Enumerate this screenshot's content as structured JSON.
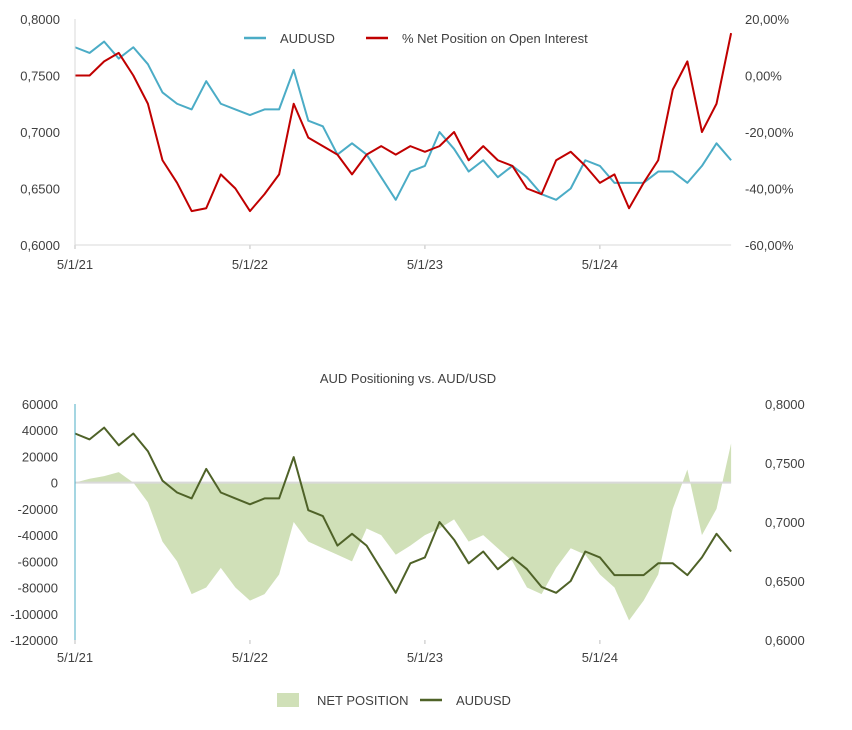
{
  "chart_data": [
    {
      "type": "line",
      "title": "",
      "legend_position": "top",
      "x_ticks": [
        "5/1/21",
        "5/1/22",
        "5/1/23",
        "5/1/24"
      ],
      "y_left": {
        "ticks": [
          "0,6000",
          "0,6500",
          "0,7000",
          "0,7500",
          "0,8000"
        ],
        "range": [
          0.6,
          0.8
        ]
      },
      "y_right": {
        "ticks": [
          "-60,00%",
          "-40,00%",
          "-20,00%",
          "0,00%",
          "20,00%"
        ],
        "range": [
          -60,
          20
        ]
      },
      "x": [
        "2021-05",
        "2021-06",
        "2021-07",
        "2021-08",
        "2021-09",
        "2021-10",
        "2021-11",
        "2021-12",
        "2022-01",
        "2022-02",
        "2022-03",
        "2022-04",
        "2022-05",
        "2022-06",
        "2022-07",
        "2022-08",
        "2022-09",
        "2022-10",
        "2022-11",
        "2022-12",
        "2023-01",
        "2023-02",
        "2023-03",
        "2023-04",
        "2023-05",
        "2023-06",
        "2023-07",
        "2023-08",
        "2023-09",
        "2023-10",
        "2023-11",
        "2023-12",
        "2024-01",
        "2024-02",
        "2024-03",
        "2024-04",
        "2024-05",
        "2024-06",
        "2024-07",
        "2024-08",
        "2024-09",
        "2024-10",
        "2024-11",
        "2024-12",
        "2025-01",
        "2025-02"
      ],
      "series": [
        {
          "name": "AUDUSD",
          "axis": "left",
          "color": "#4bacc6",
          "values": [
            0.775,
            0.77,
            0.78,
            0.765,
            0.775,
            0.76,
            0.735,
            0.725,
            0.72,
            0.745,
            0.725,
            0.72,
            0.715,
            0.72,
            0.72,
            0.755,
            0.71,
            0.705,
            0.68,
            0.69,
            0.68,
            0.66,
            0.64,
            0.665,
            0.67,
            0.7,
            0.685,
            0.665,
            0.675,
            0.66,
            0.67,
            0.66,
            0.645,
            0.64,
            0.65,
            0.675,
            0.67,
            0.655,
            0.655,
            0.655,
            0.665,
            0.665,
            0.655,
            0.67,
            0.69,
            0.675
          ]
        },
        {
          "name": "% Net Position on Open Interest",
          "axis": "right",
          "color": "#c00000",
          "values": [
            0,
            0,
            5,
            8,
            0,
            -10,
            -30,
            -38,
            -48,
            -47,
            -35,
            -40,
            -48,
            -42,
            -35,
            -10,
            -22,
            -25,
            -28,
            -35,
            -28,
            -25,
            -28,
            -25,
            -27,
            -25,
            -20,
            -30,
            -25,
            -30,
            -32,
            -40,
            -42,
            -30,
            -27,
            -32,
            -38,
            -35,
            -47,
            -38,
            -30,
            -5,
            5,
            -20,
            -10,
            15
          ]
        }
      ]
    },
    {
      "type": "area",
      "title": "AUD Positioning vs. AUD/USD",
      "legend_position": "bottom",
      "x_ticks": [
        "5/1/21",
        "5/1/22",
        "5/1/23",
        "5/1/24"
      ],
      "y_left": {
        "ticks": [
          "-120000",
          "-100000",
          "-80000",
          "-60000",
          "-40000",
          "-20000",
          "0",
          "20000",
          "40000",
          "60000"
        ],
        "range": [
          -120000,
          60000
        ]
      },
      "y_right": {
        "ticks": [
          "0,6000",
          "0,6500",
          "0,7000",
          "0,7500",
          "0,8000"
        ],
        "range": [
          0.6,
          0.8
        ]
      },
      "x": [
        "2021-05",
        "2021-06",
        "2021-07",
        "2021-08",
        "2021-09",
        "2021-10",
        "2021-11",
        "2021-12",
        "2022-01",
        "2022-02",
        "2022-03",
        "2022-04",
        "2022-05",
        "2022-06",
        "2022-07",
        "2022-08",
        "2022-09",
        "2022-10",
        "2022-11",
        "2022-12",
        "2023-01",
        "2023-02",
        "2023-03",
        "2023-04",
        "2023-05",
        "2023-06",
        "2023-07",
        "2023-08",
        "2023-09",
        "2023-10",
        "2023-11",
        "2023-12",
        "2024-01",
        "2024-02",
        "2024-03",
        "2024-04",
        "2024-05",
        "2024-06",
        "2024-07",
        "2024-08",
        "2024-09",
        "2024-10",
        "2024-11",
        "2024-12",
        "2025-01",
        "2025-02"
      ],
      "series": [
        {
          "name": "NET POSITION",
          "axis": "left",
          "kind": "area",
          "color": "#d0e0b8",
          "values": [
            0,
            3000,
            5000,
            8000,
            0,
            -15000,
            -45000,
            -60000,
            -85000,
            -80000,
            -65000,
            -80000,
            -90000,
            -85000,
            -70000,
            -30000,
            -45000,
            -50000,
            -55000,
            -60000,
            -35000,
            -40000,
            -55000,
            -48000,
            -40000,
            -35000,
            -28000,
            -45000,
            -40000,
            -50000,
            -60000,
            -80000,
            -85000,
            -65000,
            -50000,
            -55000,
            -70000,
            -80000,
            -105000,
            -90000,
            -70000,
            -20000,
            10000,
            -40000,
            -20000,
            30000
          ]
        },
        {
          "name": "AUDUSD",
          "axis": "right",
          "kind": "line",
          "color": "#4f6228",
          "values": [
            0.775,
            0.77,
            0.78,
            0.765,
            0.775,
            0.76,
            0.735,
            0.725,
            0.72,
            0.745,
            0.725,
            0.72,
            0.715,
            0.72,
            0.72,
            0.755,
            0.71,
            0.705,
            0.68,
            0.69,
            0.68,
            0.66,
            0.64,
            0.665,
            0.67,
            0.7,
            0.685,
            0.665,
            0.675,
            0.66,
            0.67,
            0.66,
            0.645,
            0.64,
            0.65,
            0.675,
            0.67,
            0.655,
            0.655,
            0.655,
            0.665,
            0.665,
            0.655,
            0.67,
            0.69,
            0.675
          ]
        }
      ]
    }
  ]
}
